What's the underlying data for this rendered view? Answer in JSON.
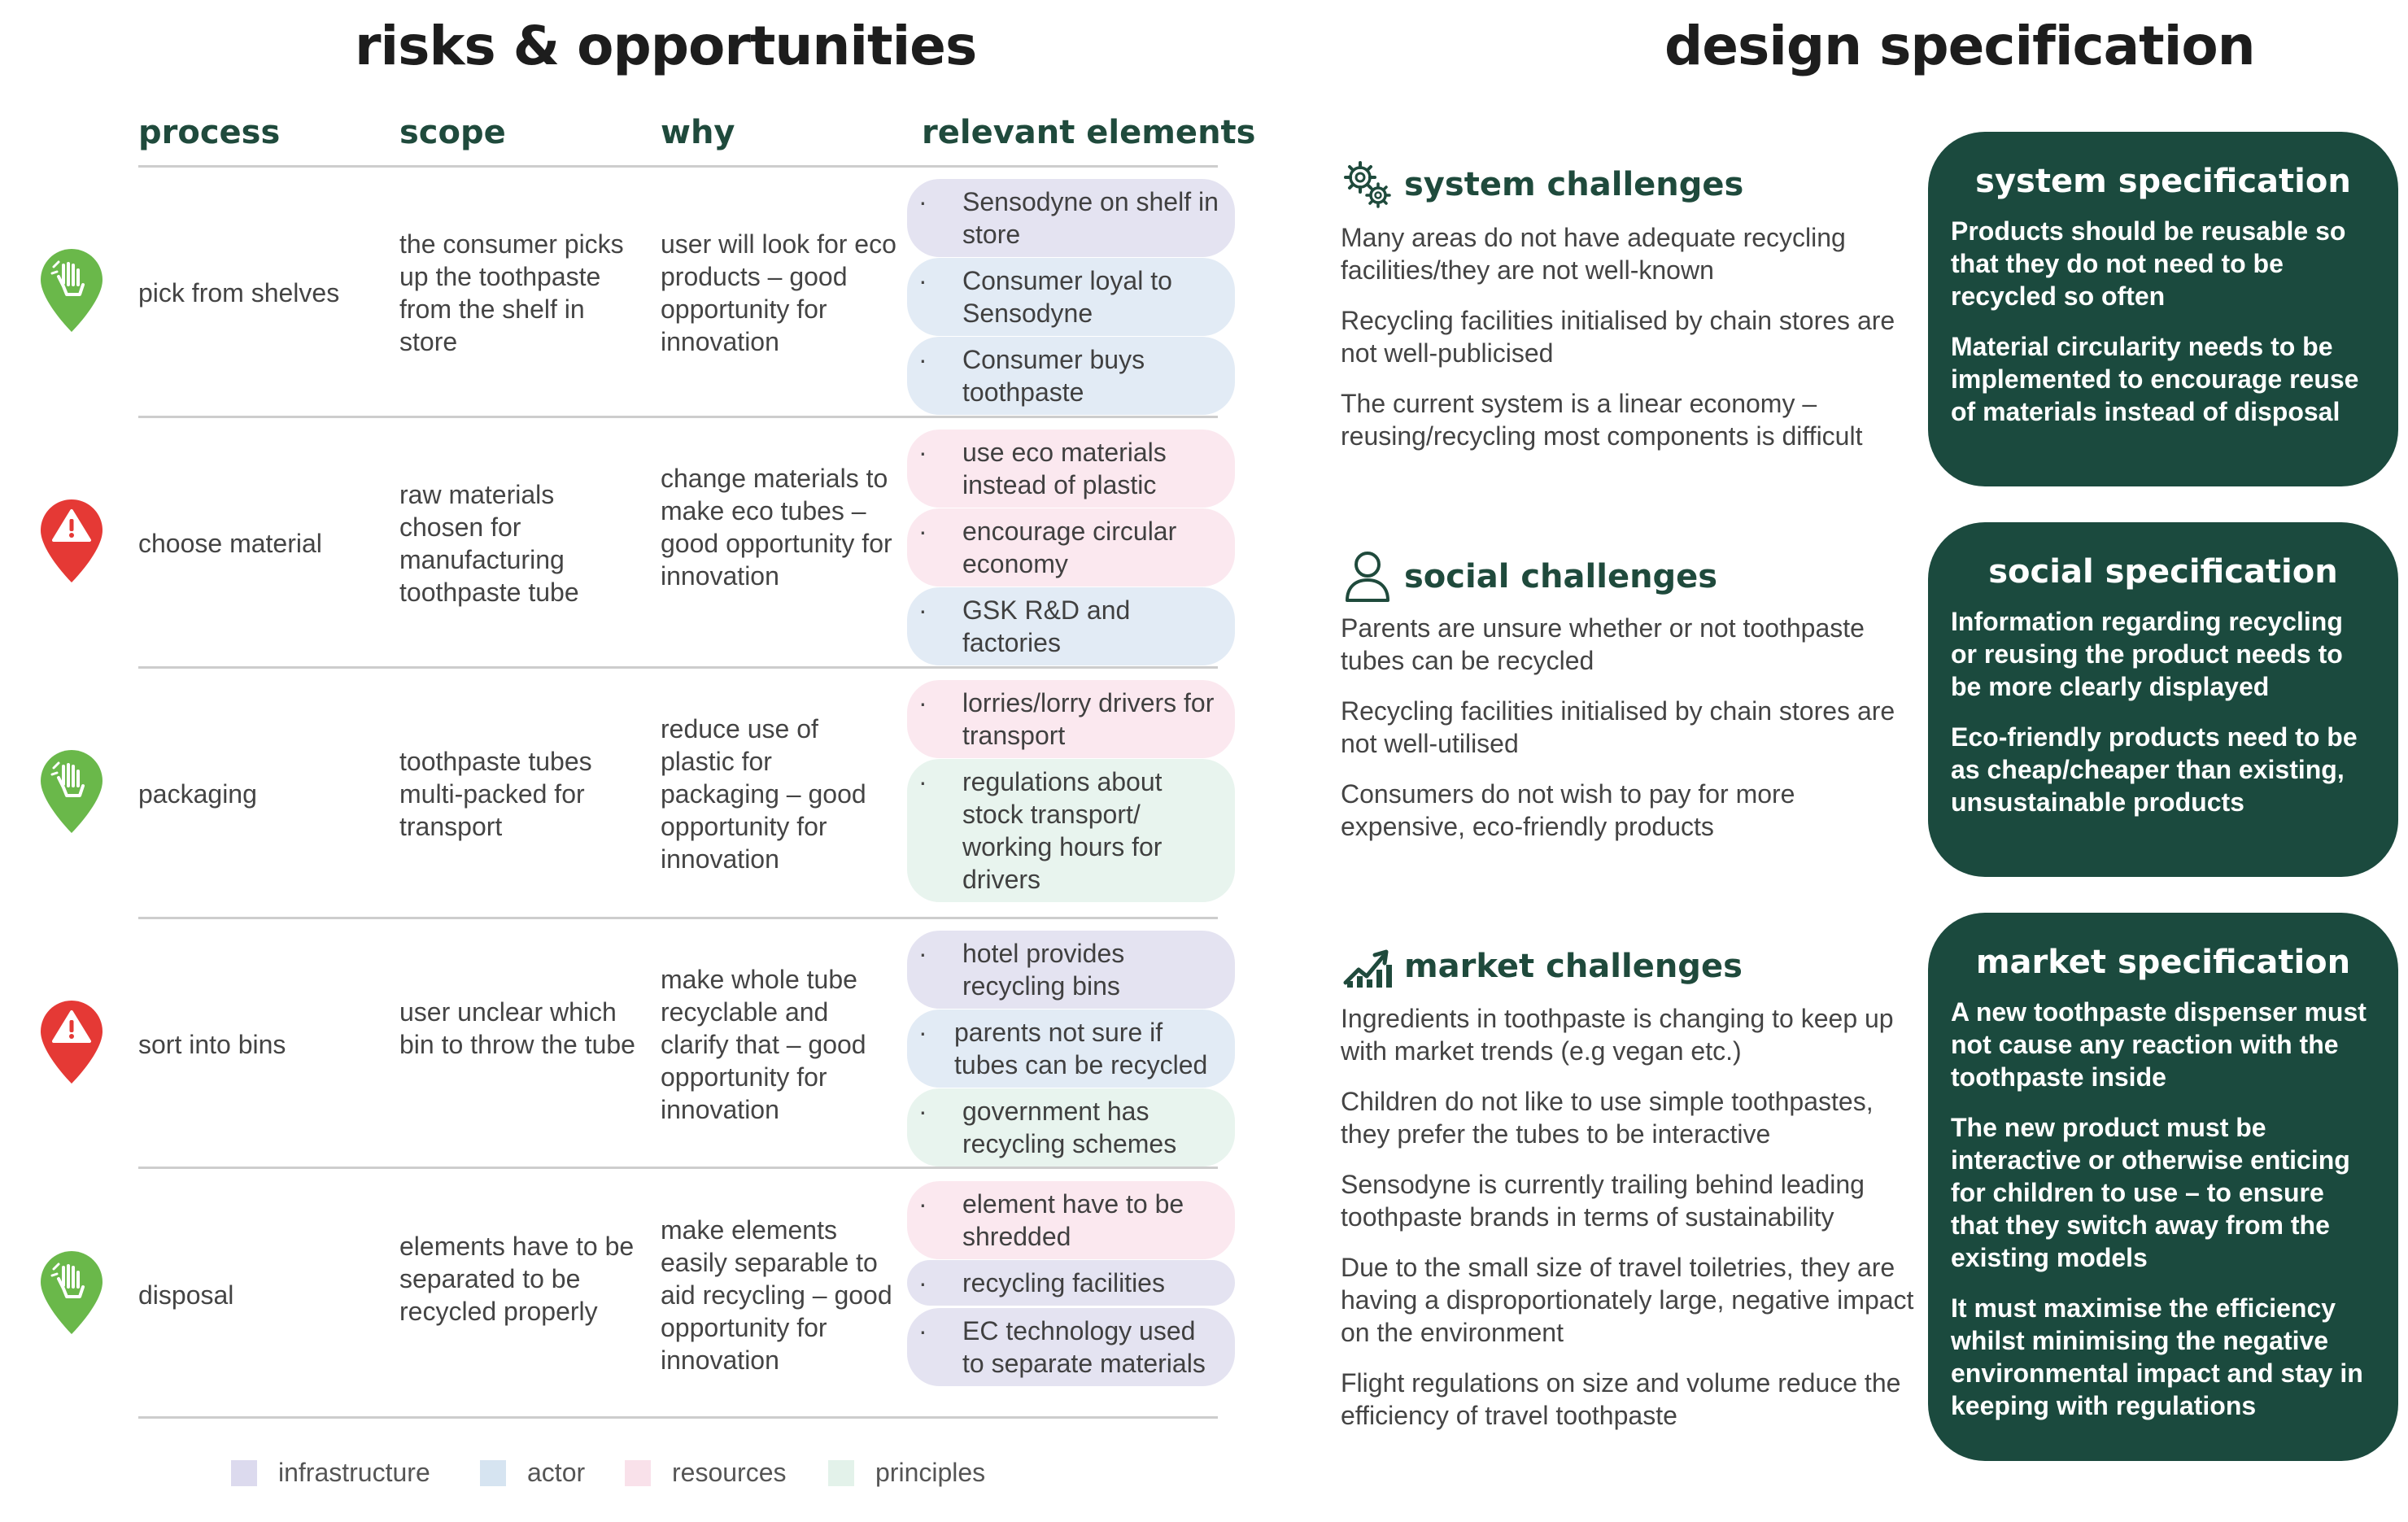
{
  "left": {
    "title": "risks & opportunities",
    "headers": {
      "process": "process",
      "scope": "scope",
      "why": "why",
      "elements": "relevant elements"
    },
    "rows": [
      {
        "status": "opportunity",
        "process": "pick from shelves",
        "scope": "the consumer picks up the toothpaste from the shelf in store",
        "why": "user will look for eco products – good opportunity for innovation",
        "elements": [
          {
            "text": "Sensodyne on shelf in store",
            "type": "infrastructure"
          },
          {
            "text": "Consumer loyal to Sensodyne",
            "type": "actor"
          },
          {
            "text": "Consumer buys toothpaste",
            "type": "actor"
          }
        ]
      },
      {
        "status": "risk",
        "process": "choose material",
        "scope": "raw materials chosen for manufacturing toothpaste tube",
        "why": "change materials to make eco tubes – good opportunity for innovation",
        "elements": [
          {
            "text": "use eco materials instead of plastic",
            "type": "resources"
          },
          {
            "text": "encourage circular economy",
            "type": "resources"
          },
          {
            "text": "GSK R&D and factories",
            "type": "actor"
          }
        ]
      },
      {
        "status": "opportunity",
        "process": "packaging",
        "scope": "toothpaste tubes multi-packed for transport",
        "why": "reduce use of plastic for packaging – good opportunity for innovation",
        "elements": [
          {
            "text": "lorries/lorry drivers for transport",
            "type": "resources"
          },
          {
            "text": "regulations about stock transport/ working hours for drivers",
            "type": "principles"
          }
        ]
      },
      {
        "status": "risk",
        "process": "sort into bins",
        "scope": "user unclear which bin to throw the tube",
        "why": "make whole tube recyclable and clarify that – good opportunity for innovation",
        "elements": [
          {
            "text": "hotel provides recycling bins",
            "type": "infrastructure"
          },
          {
            "text": "parents not sure if tubes can be recycled",
            "type": "actor"
          },
          {
            "text": "government has recycling schemes",
            "type": "principles"
          }
        ]
      },
      {
        "status": "opportunity",
        "process": "disposal",
        "scope": "elements have to be separated to be recycled properly",
        "why": "make elements easily separable to aid recycling – good opportunity for innovation",
        "elements": [
          {
            "text": "element have to be shredded",
            "type": "resources"
          },
          {
            "text": "recycling facilities",
            "type": "infrastructure"
          },
          {
            "text": "EC technology used to separate materials",
            "type": "infrastructure"
          }
        ]
      }
    ],
    "legend": [
      {
        "label": "infrastructure",
        "color": "#dcdaee"
      },
      {
        "label": "actor",
        "color": "#d6e4f1"
      },
      {
        "label": "resources",
        "color": "#f9e1ea"
      },
      {
        "label": "principles",
        "color": "#e3f2ea"
      }
    ],
    "colors": {
      "infrastructure": "#e4e3f1",
      "actor": "#e2ebf5",
      "resources": "#fbe8ef",
      "principles": "#e8f4ee",
      "opportunity": "#6ab84a",
      "risk": "#e53935"
    }
  },
  "right": {
    "title": "design specification",
    "sections": [
      {
        "icon": "gears-icon",
        "heading": "system challenges",
        "challenges": [
          "Many areas do not have adequate recycling facilities/they are not well-known",
          "Recycling facilities initialised by chain stores are not well-publicised",
          "The current system is a linear economy – reusing/recycling most components is difficult"
        ],
        "spec_title": "system specification",
        "specs": [
          "Products should be reusable so that they do not need to be recycled so often",
          "Material circularity needs to be implemented to encourage reuse of materials instead of disposal"
        ]
      },
      {
        "icon": "person-icon",
        "heading": "social challenges",
        "challenges": [
          "Parents are unsure whether or not toothpaste tubes can be recycled",
          "Recycling facilities initialised by chain stores are not well-utilised",
          "Consumers do not wish to pay for more expensive, eco-friendly products"
        ],
        "spec_title": "social specification",
        "specs": [
          "Information regarding recycling or reusing the product needs to be more clearly displayed",
          "Eco-friendly products need to be as cheap/cheaper than existing, unsustainable products"
        ]
      },
      {
        "icon": "growth-chart-icon",
        "heading": "market challenges",
        "challenges": [
          "Ingredients in toothpaste is changing to keep up with market trends (e.g vegan etc.)",
          "Children do not like to use simple toothpastes, they prefer the tubes to be interactive",
          "Sensodyne is currently trailing behind leading toothpaste brands in terms of sustainability",
          "Due to the small size of travel toiletries, they are having a disproportionately large, negative impact on the environment",
          "Flight regulations on size and volume reduce the efficiency of travel toothpaste"
        ],
        "spec_title": "market specification",
        "specs": [
          "A new toothpaste dispenser must not cause any reaction with the toothpaste inside",
          "The new product must be interactive or otherwise enticing for children to use – to ensure that they switch away from the existing models",
          "It must maximise the efficiency whilst minimising the negative environmental impact and stay in keeping with regulations"
        ]
      }
    ]
  }
}
